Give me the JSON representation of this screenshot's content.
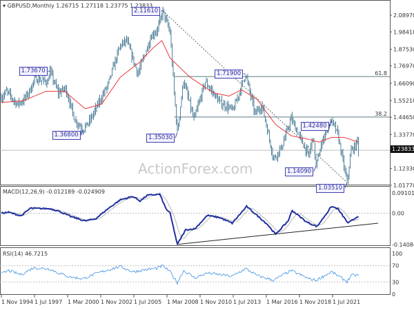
{
  "header": {
    "symbol": "GBPUSD,Monthly",
    "ohlc": "1.26715 1.27118 1.23775 1.23833"
  },
  "watermark": "ActionForex.com",
  "colors": {
    "bars": "#4f7f99",
    "ma": "#e8373a",
    "macd": "#1f2fa0",
    "signal": "#b8b8b8",
    "rsi": "#3b8fe0",
    "label_border": "#4040b0"
  },
  "chart_data": [
    {
      "type": "ohlc",
      "title": "GBPUSD,Monthly",
      "ylim": [
        1.0177,
        2.0897
      ],
      "yticks": [
        "2.08970",
        "1.98410",
        "1.87530",
        "1.76970",
        "1.66090",
        "1.55210",
        "1.44650",
        "1.33770",
        "1.12330",
        "1.01770"
      ],
      "current_price": "1.23833",
      "xticks": [
        "1 Nov 1994",
        "1 Jul 1997",
        "1 Mar 2000",
        "1 Nov 2002",
        "1 Jul 2005",
        "1 Mar 2008",
        "1 Nov 2010",
        "1 Jul 2013",
        "1 Mar 2016",
        "1 Nov 2018",
        "1 Jul 2021"
      ],
      "price_path": [
        [
          "1994-11",
          1.57
        ],
        [
          "1995-04",
          1.61
        ],
        [
          "1996-02",
          1.53
        ],
        [
          "1996-08",
          1.55
        ],
        [
          "1997-03",
          1.62
        ],
        [
          "1997-07",
          1.69
        ],
        [
          "1998-08",
          1.67
        ],
        [
          "1998-10",
          1.7367
        ],
        [
          "1999-06",
          1.6
        ],
        [
          "2000-01",
          1.63
        ],
        [
          "2000-10",
          1.43
        ],
        [
          "2001-06",
          1.368
        ],
        [
          "2002-01",
          1.43
        ],
        [
          "2002-10",
          1.55
        ],
        [
          "2003-06",
          1.65
        ],
        [
          "2003-12",
          1.78
        ],
        [
          "2004-06",
          1.9
        ],
        [
          "2004-12",
          1.93
        ],
        [
          "2005-11",
          1.72
        ],
        [
          "2006-06",
          1.85
        ],
        [
          "2006-12",
          1.96
        ],
        [
          "2007-06",
          2.0
        ],
        [
          "2007-11",
          2.1161
        ],
        [
          "2008-06",
          1.98
        ],
        [
          "2008-10",
          1.6
        ],
        [
          "2009-01",
          1.3503
        ],
        [
          "2009-07",
          1.68
        ],
        [
          "2010-05",
          1.43
        ],
        [
          "2011-04",
          1.67
        ],
        [
          "2012-06",
          1.54
        ],
        [
          "2013-07",
          1.49
        ],
        [
          "2014-07",
          1.719
        ],
        [
          "2015-04",
          1.47
        ],
        [
          "2015-11",
          1.52
        ],
        [
          "2016-10",
          1.1841
        ],
        [
          "2017-06",
          1.26
        ],
        [
          "2018-03",
          1.4377
        ],
        [
          "2019-08",
          1.2
        ],
        [
          "2019-12",
          1.33
        ],
        [
          "2020-03",
          1.1409
        ],
        [
          "2020-12",
          1.36
        ],
        [
          "2021-06",
          1.4248
        ],
        [
          "2021-12",
          1.34
        ],
        [
          "2022-09",
          1.0351
        ],
        [
          "2023-01",
          1.24
        ],
        [
          "2023-05",
          1.26
        ],
        [
          "2023-07",
          1.31
        ],
        [
          "2023-08",
          1.2383
        ]
      ],
      "moving_average": [
        [
          "1994-11",
          1.54
        ],
        [
          "1996-08",
          1.55
        ],
        [
          "1998-06",
          1.61
        ],
        [
          "1999-12",
          1.61
        ],
        [
          "2001-08",
          1.5
        ],
        [
          "2002-12",
          1.53
        ],
        [
          "2004-06",
          1.7
        ],
        [
          "2005-12",
          1.79
        ],
        [
          "2007-01",
          1.88
        ],
        [
          "2007-10",
          1.93
        ],
        [
          "2008-06",
          1.82
        ],
        [
          "2010-01",
          1.7
        ],
        [
          "2011-12",
          1.6
        ],
        [
          "2013-03",
          1.58
        ],
        [
          "2014-03",
          1.62
        ],
        [
          "2015-06",
          1.56
        ],
        [
          "2016-12",
          1.4
        ],
        [
          "2018-03",
          1.33
        ],
        [
          "2019-06",
          1.31
        ],
        [
          "2020-06",
          1.29
        ],
        [
          "2021-06",
          1.32
        ],
        [
          "2022-06",
          1.32
        ],
        [
          "2023-08",
          1.29
        ]
      ],
      "labels": [
        [
          "1998-10",
          1.7367,
          "1.73670"
        ],
        [
          "2001-06",
          1.368,
          "1.36800"
        ],
        [
          "2007-11",
          2.1161,
          "2.11610"
        ],
        [
          "2009-01",
          1.3503,
          "1.35030"
        ],
        [
          "2014-07",
          1.719,
          "1.71900"
        ],
        [
          "2020-03",
          1.1409,
          "1.14090"
        ],
        [
          "2021-06",
          1.4248,
          "1.42480"
        ],
        [
          "2022-09",
          1.0351,
          "1.03510"
        ]
      ],
      "fib_levels": [
        {
          "label": "61.8",
          "price": 1.703
        },
        {
          "label": "38.2",
          "price": 1.448
        }
      ],
      "trendline": [
        [
          "2007-11",
          2.1161
        ],
        [
          "2022-09",
          1.0351
        ]
      ]
    },
    {
      "type": "line",
      "title": "MACD(12,26,9) -0.012189 -0.024909",
      "ylim": [
        -0.140843,
        0.091015
      ],
      "yticks": [
        "0.091015",
        "0.00",
        "-0.140843"
      ],
      "macd": [
        [
          "1994-11",
          0.0
        ],
        [
          "1995-06",
          0.004
        ],
        [
          "1996-06",
          -0.012
        ],
        [
          "1997-03",
          0.022
        ],
        [
          "1998-10",
          0.02
        ],
        [
          "1999-06",
          0.01
        ],
        [
          "2000-06",
          -0.015
        ],
        [
          "2001-08",
          -0.035
        ],
        [
          "2002-06",
          -0.025
        ],
        [
          "2003-06",
          0.02
        ],
        [
          "2004-06",
          0.06
        ],
        [
          "2005-06",
          0.075
        ],
        [
          "2006-01",
          0.055
        ],
        [
          "2006-08",
          0.08
        ],
        [
          "2007-08",
          0.085
        ],
        [
          "2008-02",
          0.02
        ],
        [
          "2008-06",
          0.0
        ],
        [
          "2009-01",
          -0.14
        ],
        [
          "2009-09",
          -0.075
        ],
        [
          "2010-06",
          -0.07
        ],
        [
          "2011-06",
          -0.01
        ],
        [
          "2012-06",
          -0.02
        ],
        [
          "2013-06",
          -0.045
        ],
        [
          "2014-08",
          0.03
        ],
        [
          "2015-06",
          -0.01
        ],
        [
          "2016-04",
          -0.05
        ],
        [
          "2016-12",
          -0.095
        ],
        [
          "2017-12",
          -0.035
        ],
        [
          "2018-04",
          0.012
        ],
        [
          "2019-06",
          -0.04
        ],
        [
          "2020-04",
          -0.06
        ],
        [
          "2021-06",
          0.03
        ],
        [
          "2021-12",
          0.02
        ],
        [
          "2022-10",
          -0.045
        ],
        [
          "2023-08",
          -0.012
        ]
      ],
      "trendline": [
        [
          "2009-01",
          -0.14
        ],
        [
          "2025-03",
          -0.045
        ]
      ]
    },
    {
      "type": "line",
      "title": "RSI(14) 46.7215",
      "ylim": [
        0,
        100
      ],
      "yticks": [
        "100",
        "70",
        "30",
        "0"
      ],
      "rsi": [
        [
          "1994-11",
          50
        ],
        [
          "1995-06",
          58
        ],
        [
          "1996-06",
          48
        ],
        [
          "1997-06",
          65
        ],
        [
          "1998-10",
          62
        ],
        [
          "1999-06",
          52
        ],
        [
          "2000-06",
          42
        ],
        [
          "2001-06",
          38
        ],
        [
          "2002-06",
          50
        ],
        [
          "2003-06",
          60
        ],
        [
          "2004-06",
          68
        ],
        [
          "2005-06",
          55
        ],
        [
          "2006-06",
          60
        ],
        [
          "2007-06",
          64
        ],
        [
          "2007-11",
          70
        ],
        [
          "2008-06",
          55
        ],
        [
          "2009-01",
          28
        ],
        [
          "2009-07",
          58
        ],
        [
          "2010-06",
          40
        ],
        [
          "2011-06",
          52
        ],
        [
          "2012-06",
          48
        ],
        [
          "2013-06",
          44
        ],
        [
          "2014-07",
          63
        ],
        [
          "2015-06",
          46
        ],
        [
          "2016-10",
          34
        ],
        [
          "2017-06",
          46
        ],
        [
          "2018-03",
          58
        ],
        [
          "2019-08",
          38
        ],
        [
          "2020-03",
          34
        ],
        [
          "2021-06",
          55
        ],
        [
          "2022-09",
          31
        ],
        [
          "2023-01",
          46
        ],
        [
          "2023-08",
          46.7
        ]
      ]
    }
  ]
}
